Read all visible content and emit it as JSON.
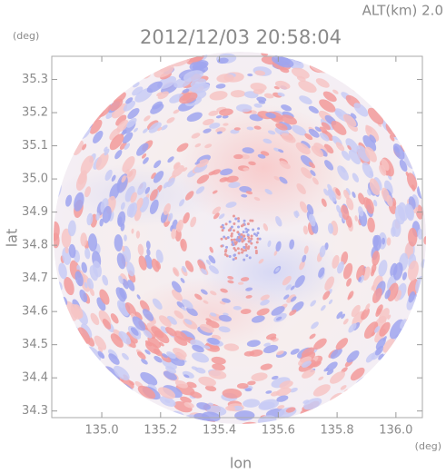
{
  "chart_data": {
    "type": "radar",
    "title": "2012/12/03 20:58:04",
    "altitude_label": "ALT(km) 2.0",
    "x_label": "lon",
    "y_label": "lat",
    "x_unit": "(deg)",
    "y_unit": "(deg)",
    "xlim": [
      134.83,
      136.09
    ],
    "ylim": [
      34.28,
      35.37
    ],
    "xticks": [
      {
        "value": 135,
        "label": "135.0"
      },
      135.2,
      135.4,
      135.6,
      135.8,
      {
        "value": 136,
        "label": "136.0"
      }
    ],
    "yticks": [
      34.3,
      34.4,
      34.5,
      34.6,
      34.7,
      34.8,
      {
        "value": 34.9,
        "label": "34.9"
      },
      {
        "value": 35,
        "label": "35.0"
      },
      35.1,
      35.2,
      35.3
    ]
  }
}
